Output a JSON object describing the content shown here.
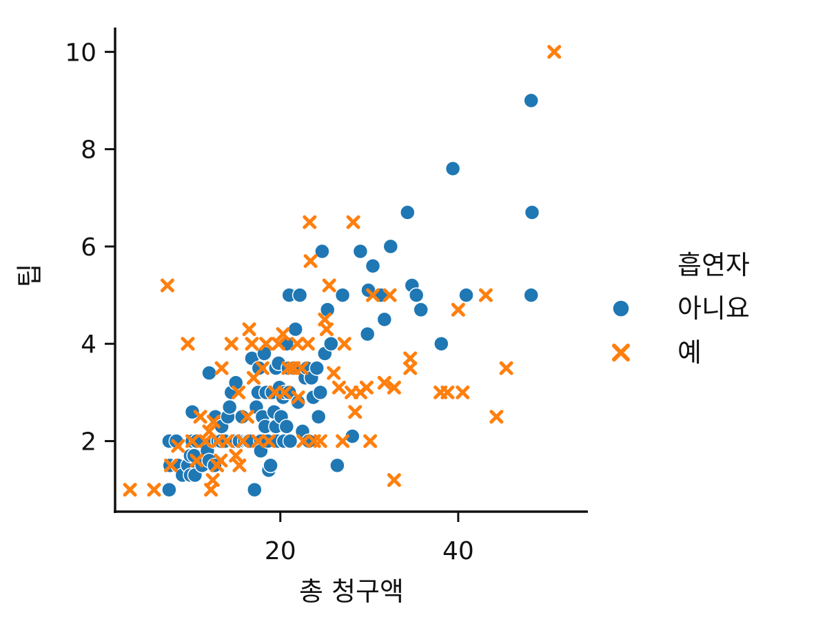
{
  "chart_data": {
    "type": "scatter",
    "xlabel": "총 청구액",
    "ylabel": "팁",
    "xlim": [
      1.5,
      54.5
    ],
    "ylim": [
      0.55,
      10.5
    ],
    "xticks": [
      20,
      40
    ],
    "yticks": [
      2,
      4,
      6,
      8,
      10
    ],
    "grid": false,
    "legend": {
      "title": "흡연자",
      "placement": "right",
      "entries": [
        {
          "label": "아니요",
          "marker": "circle",
          "color": "#1f77b4"
        },
        {
          "label": "예",
          "marker": "x",
          "color": "#ff7f0e"
        }
      ]
    },
    "series": [
      {
        "name": "아니요",
        "color": "#1f77b4",
        "marker": "circle",
        "points": [
          [
            7.5,
            1.0
          ],
          [
            7.6,
            1.5
          ],
          [
            7.5,
            2.0
          ],
          [
            8.3,
            2.0
          ],
          [
            8.5,
            1.5
          ],
          [
            9.0,
            1.3
          ],
          [
            9.6,
            1.5
          ],
          [
            9.9,
            1.7
          ],
          [
            9.9,
            1.3
          ],
          [
            10.1,
            2.0
          ],
          [
            10.3,
            1.7
          ],
          [
            10.4,
            1.3
          ],
          [
            10.1,
            2.6
          ],
          [
            10.6,
            2.0
          ],
          [
            11.2,
            1.5
          ],
          [
            11.8,
            1.8
          ],
          [
            12.0,
            1.6
          ],
          [
            12.5,
            2.0
          ],
          [
            12.0,
            3.4
          ],
          [
            12.7,
            2.5
          ],
          [
            12.6,
            1.5
          ],
          [
            13.0,
            2.0
          ],
          [
            13.3,
            2.0
          ],
          [
            13.4,
            2.3
          ],
          [
            13.8,
            2.0
          ],
          [
            14.1,
            2.5
          ],
          [
            14.3,
            2.7
          ],
          [
            14.5,
            3.0
          ],
          [
            14.8,
            2.0
          ],
          [
            15.0,
            3.2
          ],
          [
            15.4,
            2.0
          ],
          [
            15.7,
            2.5
          ],
          [
            16.0,
            2.0
          ],
          [
            16.3,
            2.0
          ],
          [
            16.5,
            2.0
          ],
          [
            16.8,
            3.7
          ],
          [
            17.1,
            1.0
          ],
          [
            17.3,
            2.7
          ],
          [
            17.5,
            3.0
          ],
          [
            17.6,
            3.5
          ],
          [
            17.8,
            2.0
          ],
          [
            17.8,
            1.8
          ],
          [
            18.0,
            2.5
          ],
          [
            18.2,
            3.8
          ],
          [
            18.3,
            2.3
          ],
          [
            18.4,
            3.0
          ],
          [
            18.6,
            2.0
          ],
          [
            18.7,
            1.4
          ],
          [
            18.9,
            1.5
          ],
          [
            19.1,
            3.0
          ],
          [
            19.3,
            2.6
          ],
          [
            19.5,
            3.5
          ],
          [
            19.5,
            2.3
          ],
          [
            19.7,
            2.0
          ],
          [
            19.8,
            3.6
          ],
          [
            19.9,
            3.1
          ],
          [
            20.1,
            2.5
          ],
          [
            20.3,
            2.9
          ],
          [
            20.4,
            2.0
          ],
          [
            20.5,
            3.0
          ],
          [
            20.7,
            4.0
          ],
          [
            20.7,
            2.3
          ],
          [
            20.9,
            3.5
          ],
          [
            21.0,
            5.0
          ],
          [
            21.0,
            3.0
          ],
          [
            21.1,
            2.0
          ],
          [
            21.5,
            3.5
          ],
          [
            21.7,
            4.3
          ],
          [
            22.0,
            2.8
          ],
          [
            22.2,
            5.0
          ],
          [
            22.5,
            2.2
          ],
          [
            22.8,
            3.3
          ],
          [
            23.0,
            3.5
          ],
          [
            23.2,
            2.0
          ],
          [
            23.5,
            3.3
          ],
          [
            23.7,
            2.9
          ],
          [
            24.1,
            3.5
          ],
          [
            24.3,
            2.5
          ],
          [
            24.5,
            3.0
          ],
          [
            24.7,
            5.9
          ],
          [
            25.0,
            3.8
          ],
          [
            25.3,
            4.7
          ],
          [
            25.7,
            4.0
          ],
          [
            26.4,
            1.5
          ],
          [
            27.0,
            5.0
          ],
          [
            28.1,
            2.1
          ],
          [
            29.0,
            5.9
          ],
          [
            29.8,
            4.2
          ],
          [
            29.9,
            5.1
          ],
          [
            30.4,
            5.6
          ],
          [
            31.3,
            5.0
          ],
          [
            31.7,
            4.5
          ],
          [
            32.4,
            6.0
          ],
          [
            34.3,
            6.7
          ],
          [
            34.8,
            5.2
          ],
          [
            35.3,
            5.0
          ],
          [
            35.8,
            4.7
          ],
          [
            38.1,
            4.0
          ],
          [
            39.4,
            7.6
          ],
          [
            40.9,
            5.0
          ],
          [
            48.2,
            9.0
          ],
          [
            48.3,
            6.7
          ],
          [
            48.2,
            5.0
          ]
        ]
      },
      {
        "name": "예",
        "color": "#ff7f0e",
        "marker": "x",
        "points": [
          [
            3.1,
            1.0
          ],
          [
            5.8,
            1.0
          ],
          [
            7.3,
            5.2
          ],
          [
            7.7,
            1.5
          ],
          [
            8.5,
            1.9
          ],
          [
            9.6,
            4.0
          ],
          [
            10.1,
            2.0
          ],
          [
            10.6,
            1.6
          ],
          [
            11.0,
            2.5
          ],
          [
            11.6,
            2.0
          ],
          [
            12.0,
            2.2
          ],
          [
            12.2,
            1.0
          ],
          [
            12.4,
            1.2
          ],
          [
            12.5,
            2.4
          ],
          [
            12.9,
            1.5
          ],
          [
            13.0,
            2.0
          ],
          [
            13.3,
            1.6
          ],
          [
            13.4,
            3.5
          ],
          [
            14.0,
            2.0
          ],
          [
            14.5,
            4.0
          ],
          [
            15.0,
            1.7
          ],
          [
            15.3,
            3.0
          ],
          [
            15.4,
            1.5
          ],
          [
            15.8,
            2.0
          ],
          [
            16.3,
            2.5
          ],
          [
            16.5,
            4.3
          ],
          [
            16.8,
            4.0
          ],
          [
            17.0,
            3.3
          ],
          [
            17.5,
            2.0
          ],
          [
            18.0,
            3.5
          ],
          [
            18.4,
            4.0
          ],
          [
            18.7,
            2.0
          ],
          [
            19.4,
            3.0
          ],
          [
            19.8,
            4.0
          ],
          [
            20.3,
            4.2
          ],
          [
            20.5,
            3.0
          ],
          [
            20.9,
            3.5
          ],
          [
            21.5,
            3.5
          ],
          [
            21.9,
            4.0
          ],
          [
            22.0,
            2.9
          ],
          [
            22.4,
            3.5
          ],
          [
            22.6,
            2.0
          ],
          [
            23.1,
            4.0
          ],
          [
            23.3,
            6.5
          ],
          [
            23.4,
            5.7
          ],
          [
            23.8,
            2.0
          ],
          [
            24.5,
            2.0
          ],
          [
            25.0,
            4.5
          ],
          [
            25.2,
            4.3
          ],
          [
            25.5,
            5.2
          ],
          [
            26.0,
            3.4
          ],
          [
            26.6,
            3.1
          ],
          [
            27.0,
            2.0
          ],
          [
            27.2,
            4.0
          ],
          [
            28.0,
            3.0
          ],
          [
            28.2,
            6.5
          ],
          [
            28.4,
            2.6
          ],
          [
            29.0,
            3.0
          ],
          [
            29.7,
            3.1
          ],
          [
            30.1,
            2.0
          ],
          [
            30.4,
            5.0
          ],
          [
            31.7,
            3.2
          ],
          [
            32.3,
            5.0
          ],
          [
            32.8,
            3.1
          ],
          [
            32.8,
            1.2
          ],
          [
            34.6,
            3.7
          ],
          [
            34.6,
            3.5
          ],
          [
            38.0,
            3.0
          ],
          [
            38.8,
            3.0
          ],
          [
            40.0,
            4.7
          ],
          [
            40.5,
            3.0
          ],
          [
            43.1,
            5.0
          ],
          [
            44.3,
            2.5
          ],
          [
            45.4,
            3.5
          ],
          [
            50.8,
            10.0
          ]
        ]
      }
    ]
  }
}
